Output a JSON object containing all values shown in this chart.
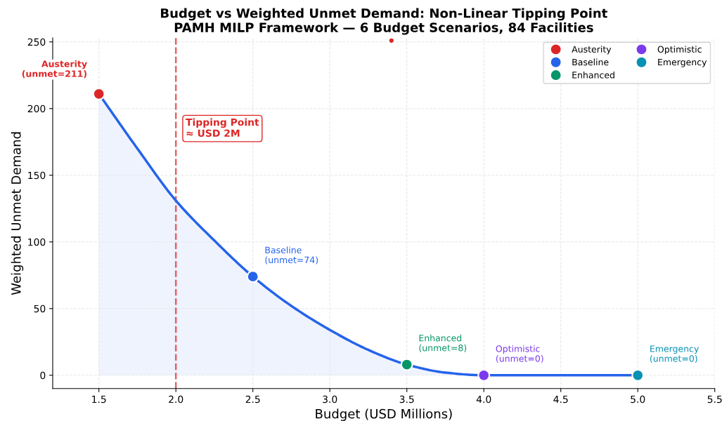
{
  "chart_data": {
    "type": "scatter",
    "title": "Budget vs Weighted Unmet Demand: Non-Linear Tipping Point\nPAMH MILP Framework — 6 Budget Scenarios, 84 Facilities",
    "xlabel": "Budget (USD Millions)",
    "ylabel": "Weighted Unmet Demand",
    "xlim": [
      1.2,
      5.5
    ],
    "xticks": [
      1.5,
      {
        "value": 2,
        "label": "2.0"
      },
      2.5,
      {
        "value": 3,
        "label": "3.0"
      },
      3.5,
      {
        "value": 4,
        "label": "4.0"
      },
      4.5,
      {
        "value": 5,
        "label": "5.0"
      },
      5.5
    ],
    "ylim": [
      -10,
      253
    ],
    "yticks": [
      0,
      50,
      100,
      150,
      200,
      250
    ],
    "grid": true,
    "legend": "top right",
    "series": [
      {
        "type": "area",
        "color": "#2563eb",
        "x": [
          1.5,
          1.75,
          2.0,
          2.25,
          2.5,
          2.75,
          3.0,
          3.25,
          3.5,
          3.75,
          4.0,
          5.0
        ],
        "values": [
          211,
          170,
          131,
          101,
          74,
          52,
          34,
          19,
          8,
          2,
          0,
          0
        ],
        "marker": "none"
      },
      {
        "name": "Austerity",
        "color": "#dc2626",
        "x": [
          1.5
        ],
        "values": [
          211
        ],
        "marker": "circle"
      },
      {
        "name": "Baseline",
        "color": "#2563eb",
        "x": [
          2.5
        ],
        "values": [
          74
        ],
        "marker": "circle"
      },
      {
        "name": "Enhanced",
        "color": "#059669",
        "x": [
          3.5
        ],
        "values": [
          8
        ],
        "marker": "circle"
      },
      {
        "name": "Optimistic",
        "color": "#7c3aed",
        "x": [
          4.0
        ],
        "values": [
          0
        ],
        "marker": "circle"
      },
      {
        "name": "Emergency",
        "color": "#0891b2",
        "x": [
          5.0
        ],
        "values": [
          0
        ],
        "marker": "circle"
      },
      {
        "color": "#dc2626",
        "x": [
          3.4
        ],
        "values": [
          251
        ],
        "marker": "circle"
      }
    ],
    "ref_lines": [
      {
        "axis": "x",
        "value": 2.0,
        "label": "Tipping Point\n≈ USD 2M",
        "color": "#dc2626",
        "line_style": "dashed"
      }
    ],
    "annotations": [
      {
        "text": "Austerity\n(unmet=211)",
        "x": 1.5,
        "y": 211
      },
      {
        "text": "Baseline\n(unmet=74)",
        "x": 2.5,
        "y": 74
      },
      {
        "text": "Enhanced\n(unmet=8)",
        "x": 3.5,
        "y": 8
      },
      {
        "text": "Optimistic\n(unmet=0)",
        "x": 4.0,
        "y": 0
      },
      {
        "text": "Emergency\n(unmet=0)",
        "x": 5.0,
        "y": 0
      }
    ]
  }
}
